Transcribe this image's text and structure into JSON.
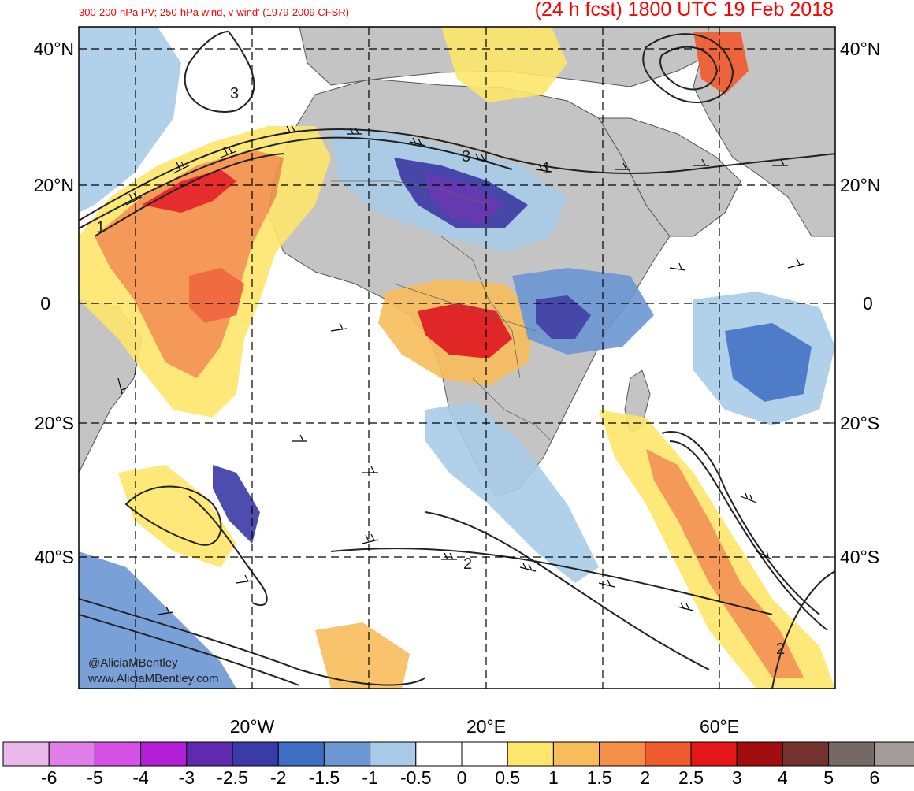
{
  "header": {
    "left_title": "300-200-hPa PV; 250-hPa wind, v-wind' (1979-2009 CFSR)",
    "right_title": "(24 h fcst) 1800 UTC 19 Feb 2018",
    "title_color": "#ff0000"
  },
  "credits": {
    "handle": "@AliciaMBentley",
    "website": "www.AliciaMBentley.com"
  },
  "map": {
    "lat_labels_left": [
      "40°N",
      "20°N",
      "0",
      "20°S",
      "40°S"
    ],
    "lat_labels_right": [
      "40°N",
      "20°N",
      "0",
      "20°S",
      "40°S"
    ],
    "lon_labels_bottom": [
      "20°W",
      "20°E",
      "60°E"
    ],
    "land_color": "#c4c4c4",
    "ocean_color": "#ffffff",
    "contour_color": "#222222",
    "contour_labels": [
      "3",
      "3",
      "1",
      "1",
      "2",
      "2"
    ]
  },
  "colorbar": {
    "colors": [
      "#eab8ea",
      "#e07fea",
      "#d652e6",
      "#b21fd6",
      "#5e2bb0",
      "#3a3aa8",
      "#3d6ec4",
      "#6b97d3",
      "#a9cbe7",
      "#ffffff",
      "#ffffff",
      "#fde66b",
      "#f7bd5b",
      "#f38f47",
      "#ef5a2e",
      "#e51618",
      "#a10d0d",
      "#75322d",
      "#766865",
      "#a39c99"
    ],
    "labels": [
      "-6",
      "-5",
      "-4",
      "-3",
      "-2.5",
      "-2",
      "-1.5",
      "-1",
      "-0.5",
      "0",
      "0.5",
      "1",
      "1.5",
      "2",
      "2.5",
      "3",
      "4",
      "5",
      "6"
    ]
  }
}
